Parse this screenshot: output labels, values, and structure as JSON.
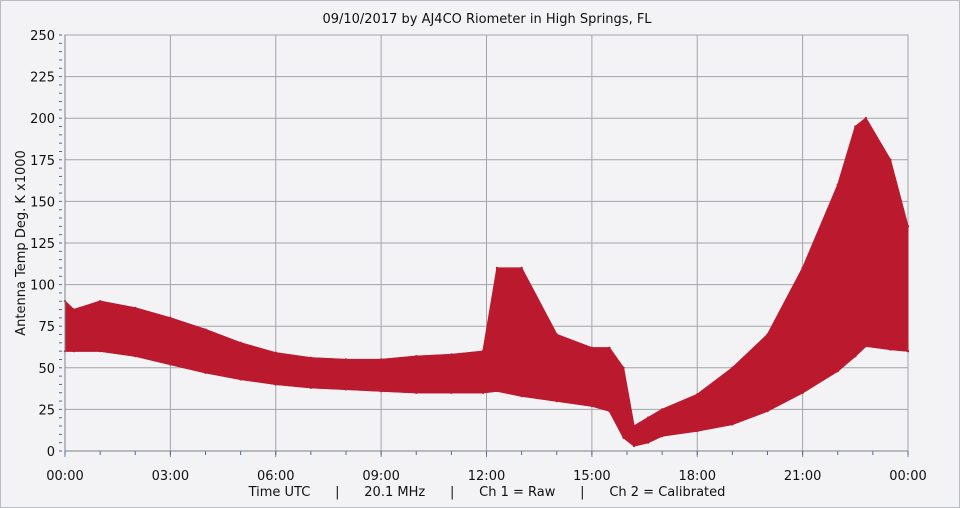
{
  "chart_data": {
    "type": "line",
    "title": "09/10/2017  by  AJ4CO Riometer  in  High Springs, FL",
    "ylabel": "Antenna Temp Deg. K x1000",
    "xlabel": "Time UTC      |      20.1 MHz      |      Ch 1 = Raw      |      Ch 2 = Calibrated",
    "ylim": [
      0,
      250
    ],
    "xlim_hours": [
      0,
      24
    ],
    "y_ticks": [
      "0",
      "25",
      "50",
      "75",
      "100",
      "125",
      "150",
      "175",
      "200",
      "225",
      "250"
    ],
    "x_ticks": [
      "00:00",
      "03:00",
      "06:00",
      "09:00",
      "12:00",
      "15:00",
      "18:00",
      "21:00",
      "00:00"
    ],
    "grid": true,
    "series": [
      {
        "color": "#bb1a2e",
        "x": [
          0,
          0.25,
          1,
          2,
          3,
          4,
          5,
          6,
          7,
          8,
          9,
          10,
          11,
          11.9,
          12.3,
          13,
          14,
          15,
          15.5,
          15.9,
          16.2,
          16.6,
          17,
          18,
          19,
          20,
          21,
          22,
          22.5,
          22.8,
          23.5,
          24
        ],
        "y_min": [
          60,
          60,
          60,
          57,
          52,
          47,
          43,
          40,
          38,
          37,
          36,
          35,
          35,
          35,
          36,
          33,
          30,
          27,
          24,
          8,
          3,
          5,
          9,
          12,
          16,
          24,
          35,
          48,
          57,
          63,
          61,
          60
        ],
        "y_max": [
          90,
          85,
          90,
          86,
          80,
          73,
          65,
          59,
          56,
          55,
          55,
          57,
          58,
          60,
          110,
          110,
          70,
          62,
          62,
          50,
          15,
          20,
          25,
          34,
          50,
          70,
          110,
          160,
          195,
          200,
          175,
          135
        ]
      }
    ]
  }
}
